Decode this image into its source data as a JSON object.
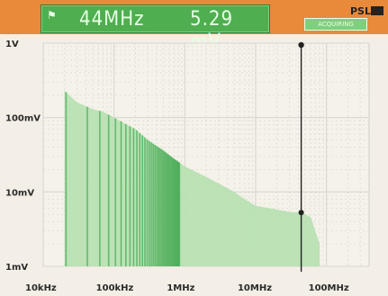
{
  "header": {
    "marker_symbol": "⚑",
    "frequency": "44MHz",
    "level": "5.29 mV",
    "status_left": "PSL",
    "status_chip": "ACQUIRING"
  },
  "chart_data": {
    "type": "area",
    "title": "",
    "xlabel": "",
    "ylabel": "",
    "x_scale": "log",
    "x_range_hz": [
      10000,
      400000000
    ],
    "y_scale": "log",
    "y_range_v": [
      0.001,
      1
    ],
    "xtick_labels": [
      "10kHz",
      "100kHz",
      "1MHz",
      "10MHz",
      "100MHz"
    ],
    "ytick_labels": [
      "1V",
      "100mV",
      "10mV",
      "1mV"
    ],
    "cursor": {
      "x_hz": 44000000,
      "level": "5.29 mV"
    },
    "series": [
      {
        "x_hz": [
          20000,
          30000,
          50000,
          70000,
          100000,
          200000,
          300000,
          500000,
          700000,
          1000000,
          2000000,
          3000000,
          5000000,
          7000000,
          10000000,
          20000000,
          30000000,
          44000000,
          60000000,
          80000000
        ],
        "y_v": [
          0.23,
          0.16,
          0.13,
          0.12,
          0.1,
          0.07,
          0.05,
          0.036,
          0.028,
          0.022,
          0.016,
          0.013,
          0.01,
          0.008,
          0.0065,
          0.0058,
          0.0054,
          0.00529,
          0.0046,
          0.002
        ]
      }
    ]
  },
  "colors": {
    "orange": "#e88a3a",
    "green": "#4fae4f",
    "trace_light": "#b8e0b3",
    "trace_dark": "#3aa44a",
    "grid": "#d8d6cf",
    "cursor": "#222222"
  }
}
